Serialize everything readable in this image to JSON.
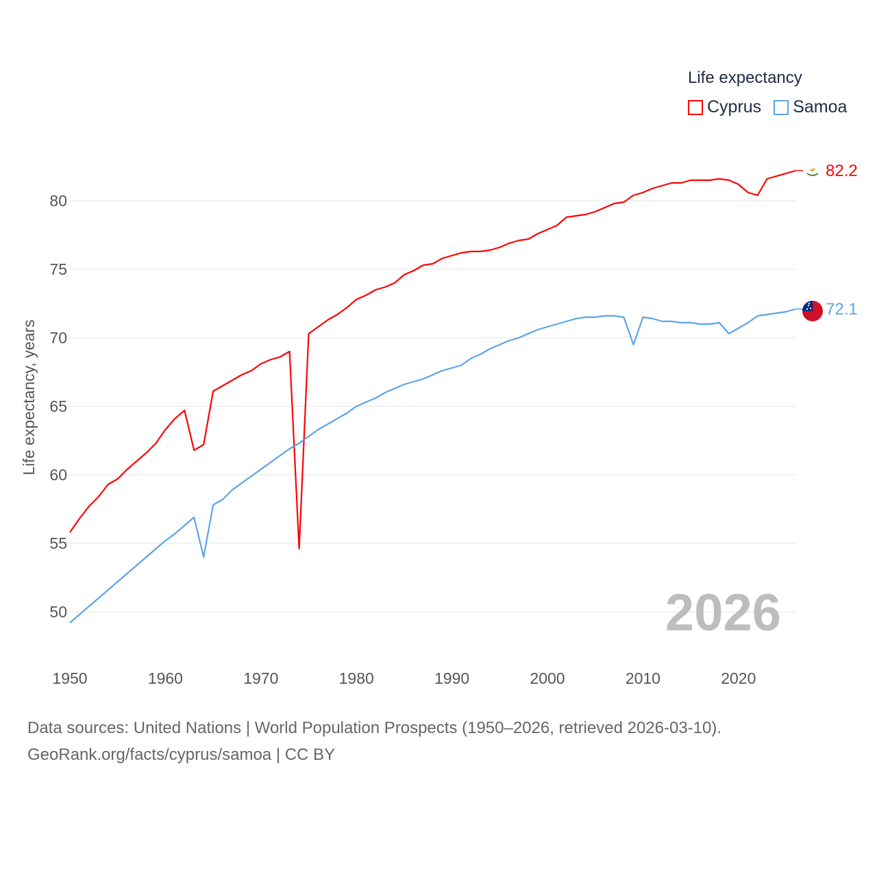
{
  "chart_data": {
    "type": "line",
    "title": "Life expectancy",
    "xlabel": "",
    "ylabel": "Life expectancy, years",
    "xlim": [
      1950,
      2026
    ],
    "ylim": [
      47.5,
      83
    ],
    "x_ticks": [
      "1950",
      "1960",
      "1970",
      "1980",
      "1990",
      "2000",
      "2010",
      "2020"
    ],
    "y_ticks": [
      "50",
      "55",
      "60",
      "65",
      "70",
      "75",
      "80"
    ],
    "grid": true,
    "legend_position": "top-right",
    "current_year_label": "2026",
    "series": [
      {
        "name": "Cyprus",
        "color": "#ff0000",
        "end_label": "82.2",
        "values": [
          55.8,
          56.8,
          57.7,
          58.4,
          59.3,
          59.7,
          60.4,
          61.0,
          61.6,
          62.3,
          63.3,
          64.1,
          64.7,
          61.8,
          62.2,
          66.1,
          66.5,
          66.9,
          67.3,
          67.6,
          68.1,
          68.4,
          68.6,
          69.0,
          54.6,
          70.3,
          70.8,
          71.3,
          71.7,
          72.2,
          72.8,
          73.1,
          73.5,
          73.7,
          74.0,
          74.6,
          74.9,
          75.3,
          75.4,
          75.8,
          76.0,
          76.2,
          76.3,
          76.3,
          76.4,
          76.6,
          76.9,
          77.1,
          77.2,
          77.6,
          77.9,
          78.2,
          78.8,
          78.9,
          79.0,
          79.2,
          79.5,
          79.8,
          79.9,
          80.4,
          80.6,
          80.9,
          81.1,
          81.3,
          81.3,
          81.5,
          81.5,
          81.5,
          81.6,
          81.5,
          81.2,
          80.6,
          80.4,
          81.6,
          81.8,
          82.0,
          82.2
        ]
      },
      {
        "name": "Samoa",
        "color": "#5ba4e8",
        "end_label": "72.1",
        "values": [
          49.2,
          49.8,
          50.4,
          51.0,
          51.6,
          52.2,
          52.8,
          53.4,
          54.0,
          54.6,
          55.2,
          55.7,
          56.3,
          56.9,
          54.0,
          57.8,
          58.2,
          58.9,
          59.4,
          59.9,
          60.4,
          60.9,
          61.4,
          61.9,
          62.3,
          62.8,
          63.3,
          63.7,
          64.1,
          64.5,
          65.0,
          65.3,
          65.6,
          66.0,
          66.3,
          66.6,
          66.8,
          67.0,
          67.3,
          67.6,
          67.8,
          68.0,
          68.5,
          68.8,
          69.2,
          69.5,
          69.8,
          70.0,
          70.3,
          70.6,
          70.8,
          71.0,
          71.2,
          71.4,
          71.5,
          71.5,
          71.6,
          71.6,
          71.5,
          69.5,
          71.5,
          71.4,
          71.2,
          71.2,
          71.1,
          71.1,
          71.0,
          71.0,
          71.1,
          70.3,
          70.7,
          71.1,
          71.6,
          71.7,
          71.8,
          71.9,
          72.1
        ]
      }
    ]
  },
  "footer": {
    "line1": "Data sources: United Nations | World Population Prospects (1950–2026, retrieved 2026-03-10).",
    "line2": "GeoRank.org/facts/cyprus/samoa | CC BY"
  }
}
